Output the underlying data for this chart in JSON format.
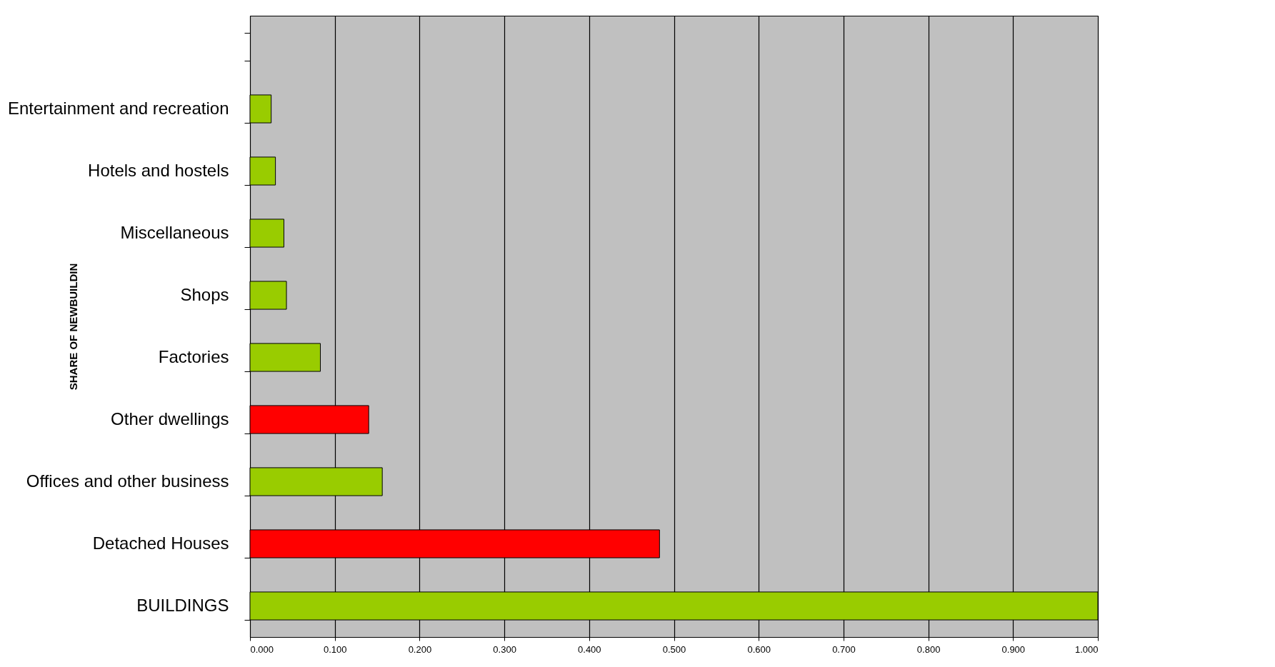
{
  "chart_data": {
    "type": "bar",
    "orientation": "horizontal",
    "ylabel": "SHARE OF NEWBUILDIN",
    "categories": [
      null,
      "Entertainment and recreation",
      "Hotels and hostels",
      "Miscellaneous",
      "Shops",
      "Factories",
      "Other dwellings",
      "Offices and other business",
      "Detached Houses",
      "BUILDINGS"
    ],
    "values": [
      null,
      0.025,
      0.03,
      0.04,
      0.043,
      0.083,
      0.14,
      0.156,
      0.483,
      1.0
    ],
    "colors": [
      "#99cc00",
      "#99cc00",
      "#99cc00",
      "#99cc00",
      "#99cc00",
      "#99cc00",
      "#ff0000",
      "#99cc00",
      "#ff0000",
      "#99cc00"
    ],
    "xlim": [
      0,
      1
    ],
    "xticks": [
      {
        "value": 0,
        "label": "0.000"
      },
      {
        "value": 0.1,
        "label": "0.100"
      },
      {
        "value": 0.2,
        "label": "0.200"
      },
      {
        "value": 0.3,
        "label": "0.300"
      },
      {
        "value": 0.4,
        "label": "0.400"
      },
      {
        "value": 0.5,
        "label": "0.500"
      },
      {
        "value": 0.6,
        "label": "0.600"
      },
      {
        "value": 0.7,
        "label": "0.700"
      },
      {
        "value": 0.8,
        "label": "0.800"
      },
      {
        "value": 0.9,
        "label": "0.900"
      },
      {
        "value": 1,
        "label": "1.000"
      }
    ],
    "grid": "x"
  }
}
